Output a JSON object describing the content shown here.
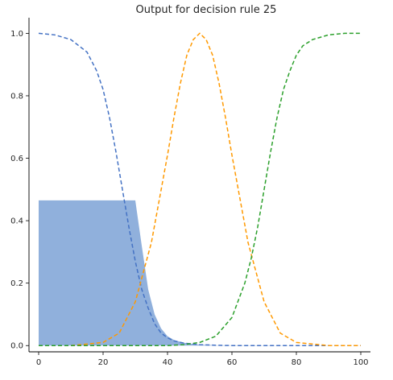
{
  "chart_data": {
    "type": "line",
    "title": "Output for decision rule 25",
    "xlabel": "",
    "ylabel": "",
    "xlim": [
      -3,
      103
    ],
    "ylim": [
      -0.02,
      1.05
    ],
    "x_ticks": [
      0,
      20,
      40,
      60,
      80,
      100
    ],
    "y_ticks": [
      0.0,
      0.2,
      0.4,
      0.6,
      0.8,
      1.0
    ],
    "x_tick_labels": [
      "0",
      "20",
      "40",
      "60",
      "80",
      "100"
    ],
    "y_tick_labels": [
      "0.0",
      "0.2",
      "0.4",
      "0.6",
      "0.8",
      "1.0"
    ],
    "grid": false,
    "legend": "none",
    "series": [
      {
        "color": "#4472c4",
        "style": "dashed",
        "x": [
          0,
          5,
          10,
          15,
          18,
          20,
          22,
          24,
          26,
          28,
          30,
          32,
          34,
          36,
          38,
          40,
          42,
          45,
          50,
          55,
          60,
          100
        ],
        "y": [
          1.0,
          0.995,
          0.98,
          0.94,
          0.88,
          0.82,
          0.73,
          0.62,
          0.5,
          0.38,
          0.27,
          0.18,
          0.12,
          0.07,
          0.04,
          0.025,
          0.015,
          0.008,
          0.003,
          0.001,
          0.0,
          0.0
        ]
      },
      {
        "color": "#ff9900",
        "style": "dashed",
        "x": [
          0,
          10,
          20,
          25,
          30,
          35,
          40,
          42,
          44,
          46,
          48,
          50,
          52,
          54,
          56,
          58,
          60,
          65,
          70,
          75,
          80,
          90,
          100
        ],
        "y": [
          0.0,
          0.0,
          0.01,
          0.04,
          0.14,
          0.33,
          0.61,
          0.73,
          0.84,
          0.93,
          0.98,
          1.0,
          0.98,
          0.93,
          0.84,
          0.73,
          0.61,
          0.33,
          0.14,
          0.04,
          0.01,
          0.0,
          0.0
        ]
      },
      {
        "color": "#2ca02c",
        "style": "dashed",
        "x": [
          0,
          40,
          45,
          50,
          55,
          60,
          64,
          66,
          68,
          70,
          72,
          74,
          76,
          78,
          80,
          82,
          85,
          90,
          95,
          100
        ],
        "y": [
          0.0,
          0.0,
          0.003,
          0.01,
          0.03,
          0.09,
          0.2,
          0.28,
          0.38,
          0.5,
          0.62,
          0.73,
          0.82,
          0.88,
          0.93,
          0.96,
          0.98,
          0.995,
          1.0,
          1.0
        ]
      }
    ],
    "filled_region": {
      "color": "#90b0dc",
      "cap": 0.465,
      "x": [
        0,
        30,
        32,
        34,
        36,
        38,
        40,
        42,
        45,
        50,
        55,
        100
      ],
      "y": [
        0.465,
        0.465,
        0.32,
        0.18,
        0.1,
        0.055,
        0.03,
        0.018,
        0.009,
        0.003,
        0.001,
        0.0
      ]
    }
  }
}
